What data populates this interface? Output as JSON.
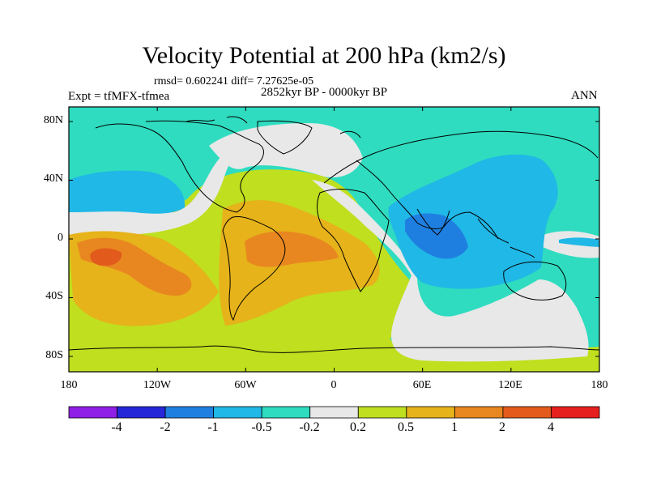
{
  "title": "Velocity Potential at 200 hPa (km2/s)",
  "stats": "rmsd= 0.602241 diff= 7.27625e-05",
  "experiment": "Expt = tfMFX-tfmea",
  "period": "2852kyr BP - 0000kyr BP",
  "season": "ANN",
  "axes": {
    "y_ticks": [
      "80N",
      "40N",
      "0",
      "40S",
      "80S"
    ],
    "x_ticks": [
      "180",
      "120W",
      "60W",
      "0",
      "60E",
      "120E",
      "180"
    ]
  },
  "colorbar": {
    "colors": [
      "#8f1fe6",
      "#2626d9",
      "#1f7fe0",
      "#20b8e6",
      "#2fdcc0",
      "#e8e8e8",
      "#bfdf1f",
      "#e6b31a",
      "#e8871f",
      "#e25a1c",
      "#e61f1f"
    ],
    "labels": [
      "-4",
      "-2",
      "-1",
      "-0.5",
      "-0.2",
      "0.2",
      "0.5",
      "1",
      "2",
      "4"
    ]
  },
  "map_colors": {
    "neg_02": "#2fdcc0",
    "neg_05": "#20b8e6",
    "neg_1": "#1f7fe0",
    "near_zero": "#e8e8e8",
    "pos_02": "#bfdf1f",
    "pos_05": "#e6b31a",
    "pos_1": "#e8871f",
    "pos_2": "#e25a1c"
  }
}
